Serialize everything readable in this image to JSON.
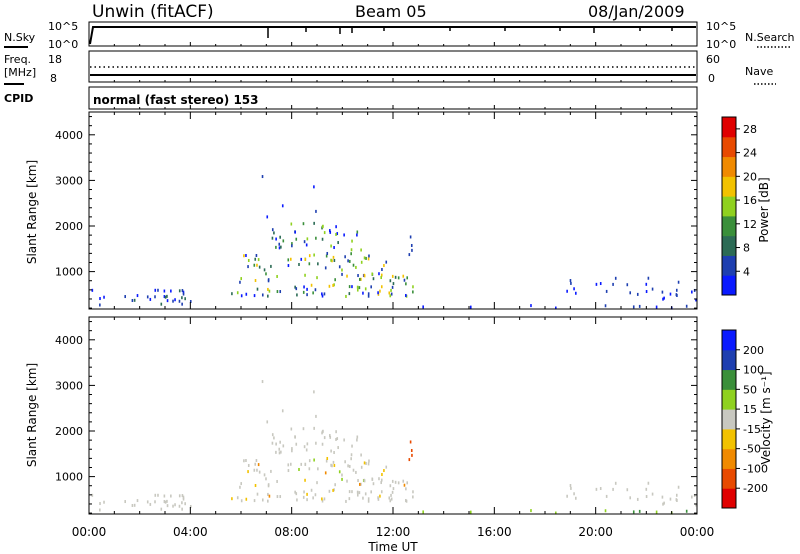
{
  "header": {
    "station": "Unwin (fitACF)",
    "beam": "Beam 05",
    "date": "08/Jan/2009"
  },
  "panels": {
    "nsky_label": "N.Sky",
    "nsky_ticks": [
      "10^5",
      "10^0"
    ],
    "nsearch_label": "N.Search",
    "nsearch_ticks": [
      "10^5",
      "10^0"
    ],
    "freq_label_1": "Freq.",
    "freq_label_2": "[MHz]",
    "freq_ticks": [
      "18",
      "8"
    ],
    "nave_label": "Nave",
    "nave_ticks": [
      "60",
      "0"
    ],
    "cpid_label": "CPID",
    "cpid_text": "normal (fast stereo) 153"
  },
  "colors": {
    "power": [
      "#0a1aff",
      "#1e3fb0",
      "#2c6b55",
      "#3a8f3a",
      "#8fd11f",
      "#f2c200",
      "#f08a00",
      "#e84a00",
      "#e00000"
    ],
    "velocity": [
      "#e00000",
      "#e84a00",
      "#f08a00",
      "#f2c200",
      "#c8c8c0",
      "#8fd11f",
      "#3a8f3a",
      "#1e3fb0",
      "#0a1aff"
    ]
  },
  "chart_data": [
    {
      "type": "heatmap",
      "name": "Power",
      "xlabel": "",
      "ylabel": "Slant Range [km]",
      "xlim": [
        "00:00",
        "00:00"
      ],
      "ylim": [
        180,
        4500
      ],
      "y_ticks": [
        "1000",
        "2000",
        "3000",
        "4000"
      ],
      "colorbar_label": "Power [dB]",
      "colorbar_ticks": [
        "4",
        "8",
        "12",
        "16",
        "20",
        "24",
        "28"
      ],
      "colorbar_range": [
        0,
        30
      ]
    },
    {
      "type": "heatmap",
      "name": "Velocity",
      "xlabel": "Time UT",
      "ylabel": "Slant Range [km]",
      "x_ticks": [
        "00:00",
        "04:00",
        "08:00",
        "12:00",
        "16:00",
        "20:00",
        "00:00"
      ],
      "xlim": [
        "00:00",
        "00:00"
      ],
      "ylim": [
        180,
        4500
      ],
      "y_ticks": [
        "1000",
        "2000",
        "3000",
        "4000"
      ],
      "colorbar_label": "Velocity [m s⁻¹]",
      "colorbar_ticks": [
        "200",
        "100",
        "50",
        "15",
        "-15",
        "-50",
        "-100",
        "-200"
      ],
      "colorbar_range": [
        -250,
        250
      ]
    }
  ]
}
